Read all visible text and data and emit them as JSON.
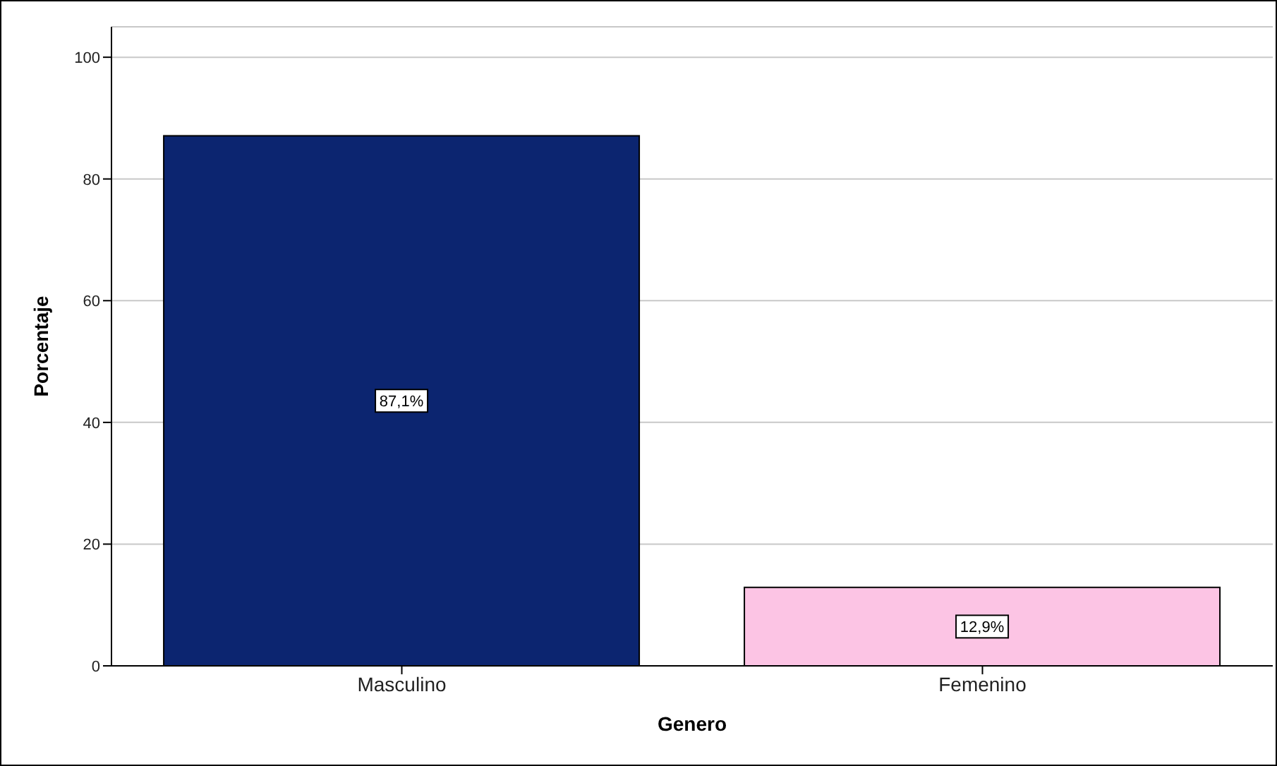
{
  "chart_data": {
    "type": "bar",
    "xlabel": "Genero",
    "ylabel": "Porcentaje",
    "categories": [
      "Masculino",
      "Femenino"
    ],
    "values": [
      87.1,
      12.9
    ],
    "colors": [
      "#0c2570",
      "#fcc4e4"
    ],
    "value_labels": [
      "87,1%",
      "12,9%"
    ],
    "ylim": [
      0,
      105
    ],
    "yticks": [
      0,
      20,
      40,
      60,
      80,
      100
    ],
    "grid": "y"
  }
}
